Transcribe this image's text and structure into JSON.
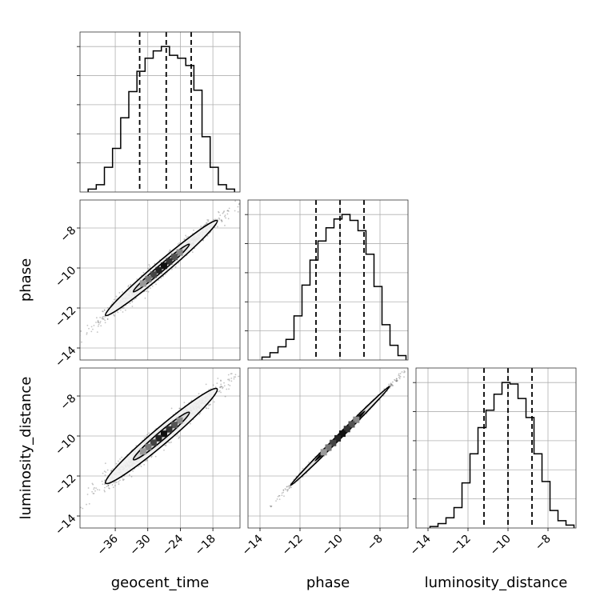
{
  "chart_data": {
    "type": "corner",
    "parameters": [
      "geocent_time",
      "phase",
      "luminosity_distance"
    ],
    "ranges": {
      "geocent_time": [
        -42.5,
        -13
      ],
      "phase": [
        -14.6,
        -6.6
      ],
      "luminosity_distance": [
        -14.6,
        -6.6
      ]
    },
    "ticks": {
      "geocent_time": [
        -36,
        -30,
        -24,
        -18
      ],
      "phase": [
        -14,
        -12,
        -10,
        -8
      ],
      "luminosity_distance": [
        -14,
        -12,
        -10,
        -8
      ]
    },
    "tick_labels": {
      "geocent_time": [
        "−36",
        "−30",
        "−24",
        "−18"
      ],
      "phase": [
        "−14",
        "−12",
        "−10",
        "−8"
      ],
      "luminosity_distance": [
        "−14",
        "−12",
        "−10",
        "−8"
      ]
    },
    "quantiles": {
      "geocent_time": [
        -31.5,
        -26.6,
        -22.0
      ],
      "phase": [
        -11.2,
        -10.0,
        -8.8
      ],
      "luminosity_distance": [
        -11.2,
        -10.0,
        -8.8
      ]
    },
    "histograms": {
      "geocent_time": {
        "edges": [
          -41,
          -39.5,
          -38,
          -36.5,
          -35,
          -33.5,
          -32,
          -30.5,
          -29,
          -27.5,
          -26,
          -24.5,
          -23,
          -21.5,
          -20,
          -18.5,
          -17,
          -15.5,
          -14
        ],
        "counts": [
          2,
          5,
          17,
          30,
          51,
          69,
          83,
          92,
          97,
          100,
          94,
          92,
          87,
          70,
          38,
          17,
          5,
          2
        ]
      },
      "phase": {
        "edges": [
          -13.9,
          -13.5,
          -13.1,
          -12.7,
          -12.3,
          -11.9,
          -11.5,
          -11.1,
          -10.7,
          -10.3,
          -9.9,
          -9.5,
          -9.1,
          -8.7,
          -8.3,
          -7.9,
          -7.5,
          -7.1,
          -6.7
        ],
        "counts": [
          2,
          5,
          9,
          14,
          30,
          51,
          68,
          81,
          90,
          96,
          99,
          95,
          88,
          72,
          50,
          24,
          10,
          3
        ]
      },
      "luminosity_distance": {
        "edges": [
          -13.9,
          -13.5,
          -13.1,
          -12.7,
          -12.3,
          -11.9,
          -11.5,
          -11.1,
          -10.7,
          -10.3,
          -9.9,
          -9.5,
          -9.1,
          -8.7,
          -8.3,
          -7.9,
          -7.5,
          -7.1,
          -6.7
        ],
        "counts": [
          1,
          3,
          7,
          14,
          31,
          51,
          69,
          81,
          92,
          100,
          99,
          89,
          76,
          51,
          32,
          12,
          5,
          2
        ]
      }
    },
    "pairs": [
      {
        "x": "geocent_time",
        "y": "phase",
        "mean": [
          -27.5,
          -10.0
        ],
        "sd": [
          5.2,
          1.2
        ],
        "rho": 0.985
      },
      {
        "x": "geocent_time",
        "y": "luminosity_distance",
        "mean": [
          -27.5,
          -10.0
        ],
        "sd": [
          5.2,
          1.2
        ],
        "rho": 0.975
      },
      {
        "x": "phase",
        "y": "luminosity_distance",
        "mean": [
          -10.0,
          -10.0
        ],
        "sd": [
          1.25,
          1.25
        ],
        "rho": 0.998
      }
    ],
    "contour_levels": [
      0.39,
      0.86
    ],
    "grid": true
  }
}
